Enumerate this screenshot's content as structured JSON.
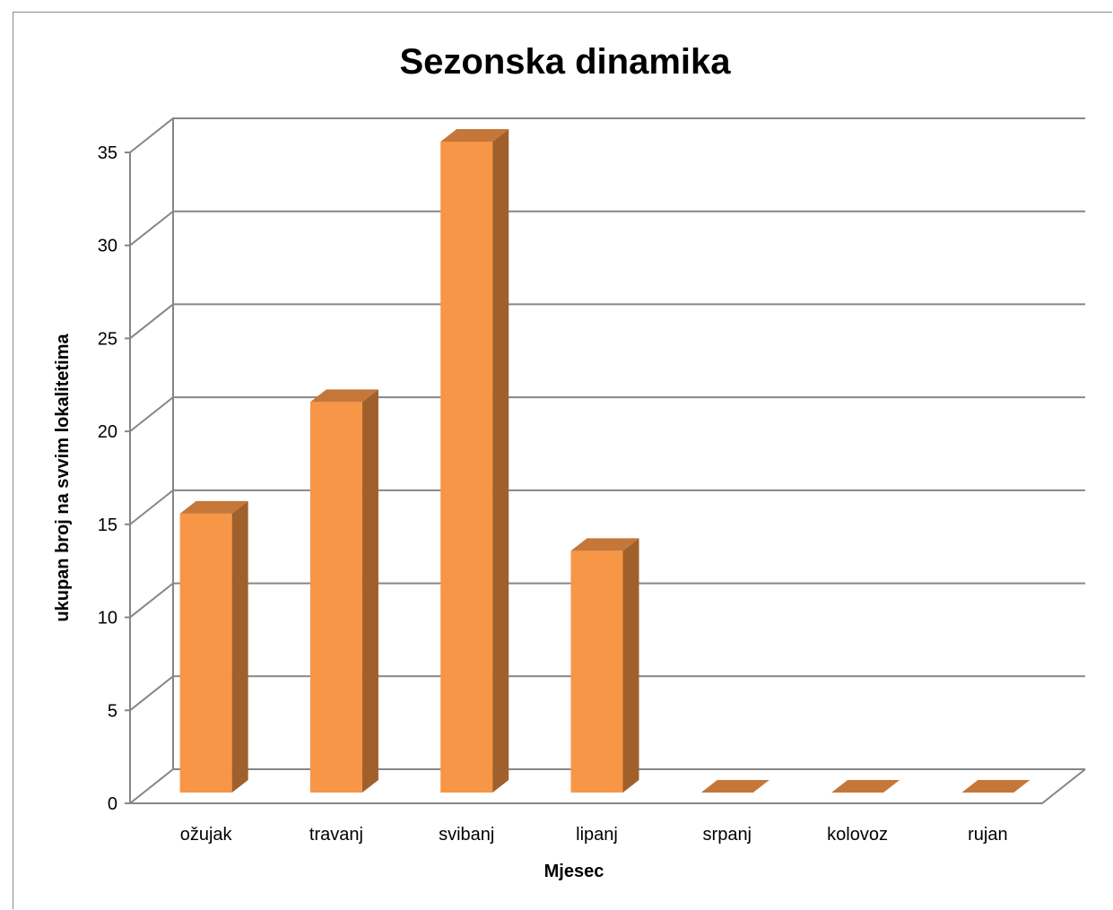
{
  "chart_data": {
    "type": "bar",
    "title": "Sezonska dinamika",
    "xlabel": "Mjesec",
    "ylabel": "ukupan broj na svvim lokalitetima",
    "categories": [
      "ožujak",
      "travanj",
      "svibanj",
      "lipanj",
      "srpanj",
      "kolovoz",
      "rujan"
    ],
    "values": [
      15,
      21,
      35,
      13,
      0,
      0,
      0
    ],
    "ylim": [
      0,
      35
    ],
    "yticks": [
      "0",
      "5",
      "10",
      "15",
      "20",
      "25",
      "30",
      "35"
    ],
    "grid": true,
    "three_d": true,
    "colors": {
      "front": "#f79646",
      "side": "#a0602b",
      "top": "#c5773a",
      "grid": "#868686"
    }
  }
}
